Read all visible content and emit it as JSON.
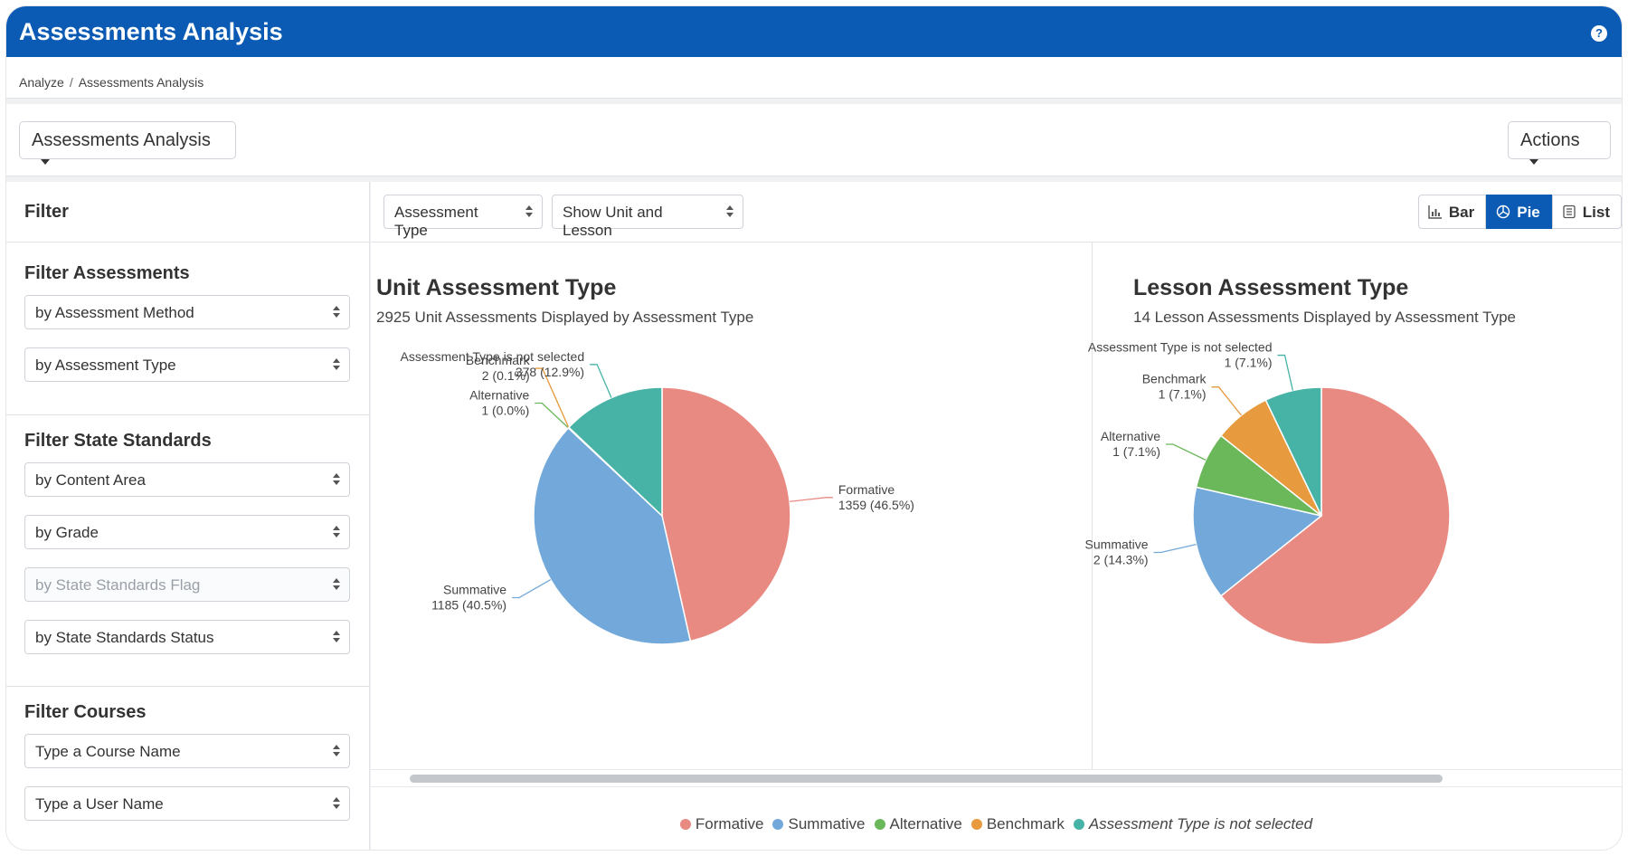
{
  "header": {
    "title": "Assessments Analysis",
    "help_icon": "?"
  },
  "breadcrumb": {
    "items": [
      "Analyze",
      "Assessments Analysis"
    ],
    "separator": "/"
  },
  "toolbar": {
    "report_select": "Assessments Analysis",
    "actions_label": "Actions"
  },
  "sidebar": {
    "title": "Filter",
    "sections": [
      {
        "title": "Filter Assessments",
        "selects": [
          "by Assessment Method",
          "by Assessment Type"
        ]
      },
      {
        "title": "Filter State Standards",
        "selects": [
          "by Content Area",
          "by Grade",
          "by State Standards Flag",
          "by State Standards Status"
        ]
      },
      {
        "title": "Filter Courses",
        "selects": [
          "Type a Course Name",
          "Type a User Name"
        ]
      }
    ]
  },
  "main_toolbar": {
    "group_by": "Assessment Type",
    "show": "Show Unit and Lesson",
    "views": [
      "Bar",
      "Pie",
      "List"
    ],
    "active_view": "Pie"
  },
  "chart_data": [
    {
      "type": "pie",
      "title": "Unit Assessment Type",
      "subtitle": "2925 Unit Assessments Displayed by Assessment Type",
      "slices": [
        {
          "label": "Formative",
          "value": 1359,
          "display": "1359 (46.5%)",
          "color": "#e98a82"
        },
        {
          "label": "Summative",
          "value": 1185,
          "display": "1185 (40.5%)",
          "color": "#72a9da"
        },
        {
          "label": "Alternative",
          "value": 1,
          "display": "1 (0.0%)",
          "color": "#6ab85a"
        },
        {
          "label": "Benchmark",
          "value": 2,
          "display": "2 (0.1%)",
          "color": "#e79a3e"
        },
        {
          "label": "Assessment Type is not selected",
          "value": 378,
          "display": "378 (12.9%)",
          "color": "#47b2a6"
        }
      ]
    },
    {
      "type": "pie",
      "title": "Lesson Assessment Type",
      "subtitle": "14 Lesson Assessments Displayed by Assessment Type",
      "slices": [
        {
          "label": "Formative",
          "value": 9,
          "display": "",
          "color": "#e98a82"
        },
        {
          "label": "Summative",
          "value": 2,
          "display": "2 (14.3%)",
          "color": "#72a9da"
        },
        {
          "label": "Alternative",
          "value": 1,
          "display": "1 (7.1%)",
          "color": "#6ab85a"
        },
        {
          "label": "Benchmark",
          "value": 1,
          "display": "1 (7.1%)",
          "color": "#e79a3e"
        },
        {
          "label": "Assessment Type is not selected",
          "value": 1,
          "display": "1 (7.1%)",
          "color": "#47b2a6"
        }
      ]
    }
  ],
  "legend": [
    {
      "label": "Formative",
      "color": "#e98a82"
    },
    {
      "label": "Summative",
      "color": "#72a9da"
    },
    {
      "label": "Alternative",
      "color": "#6ab85a"
    },
    {
      "label": "Benchmark",
      "color": "#e79a3e"
    },
    {
      "label": "Assessment Type is not selected",
      "color": "#47b2a6",
      "italic": true
    }
  ]
}
